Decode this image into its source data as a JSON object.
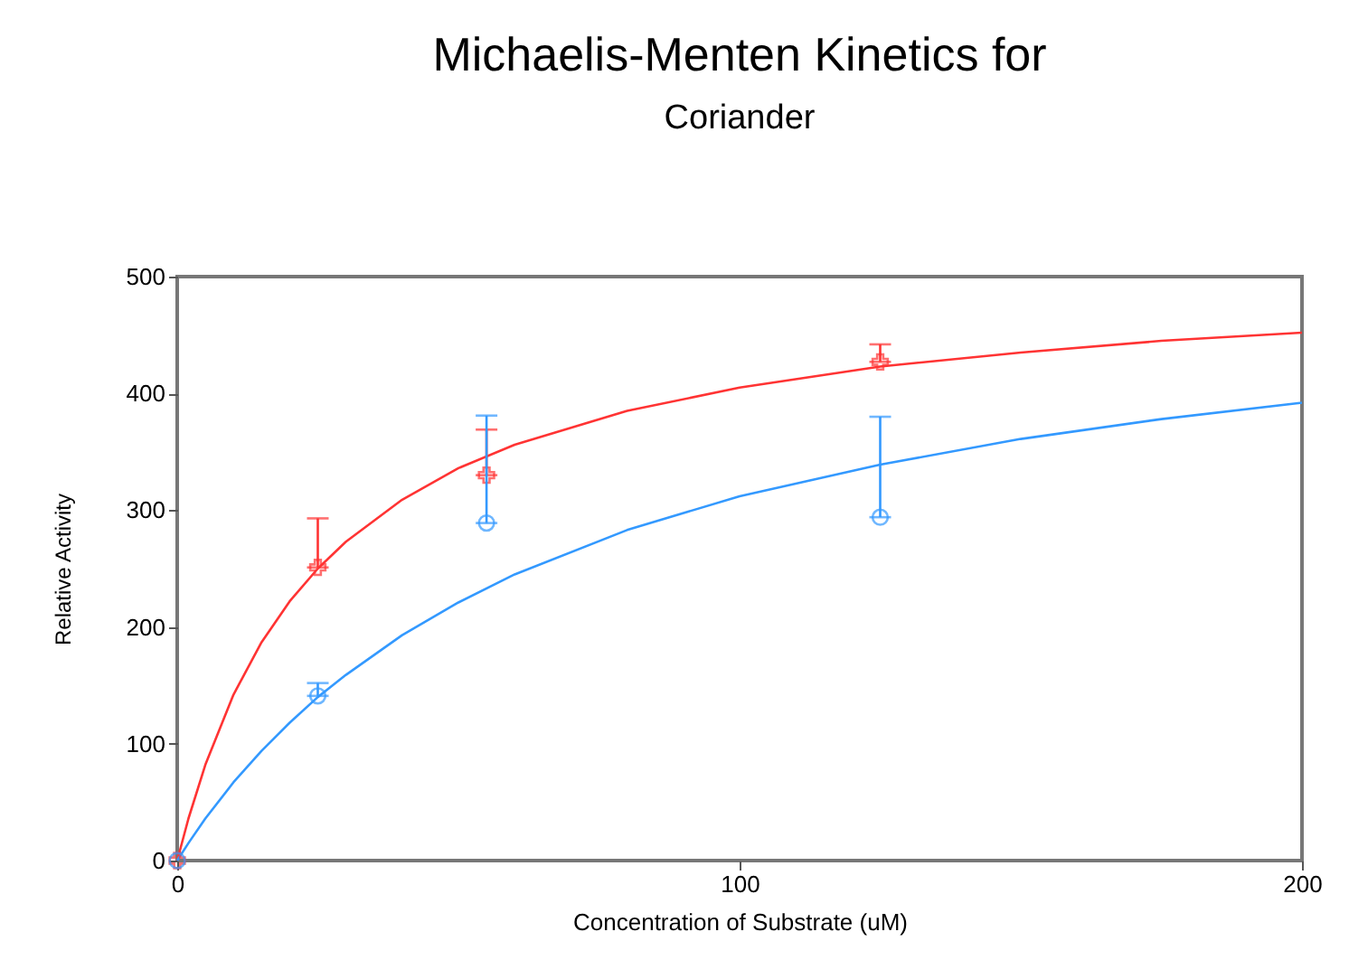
{
  "chart_data": {
    "type": "scatter",
    "title": "Michaelis-Menten Kinetics for",
    "subtitle": "Coriander",
    "xlabel": "Concentration of Substrate (uM)",
    "ylabel": "Relative Activity",
    "xlim": [
      0,
      200
    ],
    "xticks": [
      0,
      100,
      200
    ],
    "ylim": [
      0,
      500
    ],
    "yticks": [
      0,
      100,
      200,
      300,
      400,
      500
    ],
    "grid": false,
    "series": [
      {
        "type": "line",
        "color": "#ff3333",
        "marker": "none",
        "x": [
          0,
          2,
          5,
          10,
          15,
          20,
          25,
          30,
          40,
          50,
          60,
          80,
          100,
          125,
          150,
          175,
          200
        ],
        "values": [
          0,
          36,
          82,
          142,
          187,
          222,
          250,
          273,
          309,
          336,
          356,
          385,
          405,
          423,
          435,
          445,
          452
        ]
      },
      {
        "type": "line",
        "color": "#3399ff",
        "marker": "none",
        "x": [
          0,
          2,
          5,
          10,
          15,
          20,
          25,
          30,
          40,
          50,
          60,
          80,
          100,
          125,
          150,
          175,
          200
        ],
        "values": [
          0,
          15,
          36,
          67,
          94,
          118,
          140,
          159,
          193,
          221,
          245,
          283,
          312,
          339,
          361,
          378,
          392
        ]
      },
      {
        "color": "#ff3333",
        "marker": "cross",
        "x": [
          0,
          25,
          55,
          125
        ],
        "values": [
          0,
          251,
          330,
          427
        ],
        "errors": [
          null,
          [
            251,
            293
          ],
          [
            330,
            369
          ],
          [
            427,
            442
          ]
        ]
      },
      {
        "color": "#3399ff",
        "marker": "circle",
        "x": [
          0,
          25,
          55,
          125
        ],
        "values": [
          0,
          141,
          289,
          294
        ],
        "errors": [
          null,
          [
            141,
            152
          ],
          [
            289,
            381
          ],
          [
            294,
            380
          ]
        ]
      }
    ]
  }
}
